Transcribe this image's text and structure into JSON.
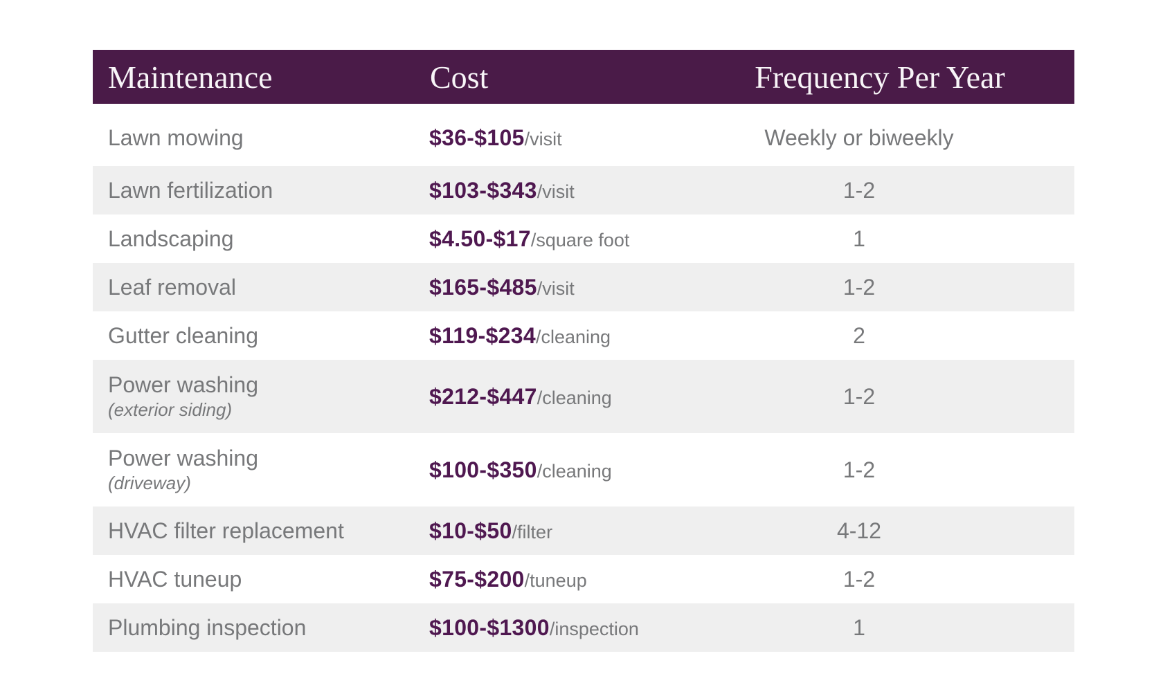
{
  "colors": {
    "header_bg": "#4A1B48",
    "header_text": "#F8F5F8",
    "cost_accent": "#4F1850",
    "body_text": "#77787A",
    "row_alt_bg": "#EFEFEF",
    "page_bg": "#FFFFFF"
  },
  "chart_data": {
    "type": "table",
    "columns": [
      "Maintenance",
      "Cost",
      "Frequency Per Year"
    ],
    "rows": [
      {
        "name": "Lawn mowing",
        "sub": "",
        "cost": "$36-$105",
        "unit": "/visit",
        "frequency": "Weekly or biweekly"
      },
      {
        "name": "Lawn fertilization",
        "sub": "",
        "cost": "$103-$343",
        "unit": "/visit",
        "frequency": "1-2"
      },
      {
        "name": "Landscaping",
        "sub": "",
        "cost": "$4.50-$17",
        "unit": "/square foot",
        "frequency": "1"
      },
      {
        "name": "Leaf removal",
        "sub": "",
        "cost": "$165-$485",
        "unit": "/visit",
        "frequency": "1-2"
      },
      {
        "name": "Gutter cleaning",
        "sub": "",
        "cost": "$119-$234",
        "unit": "/cleaning",
        "frequency": "2"
      },
      {
        "name": "Power washing",
        "sub": "(exterior siding)",
        "cost": "$212-$447",
        "unit": "/cleaning",
        "frequency": "1-2"
      },
      {
        "name": "Power washing",
        "sub": "(driveway)",
        "cost": "$100-$350",
        "unit": "/cleaning",
        "frequency": "1-2"
      },
      {
        "name": "HVAC filter replacement",
        "sub": "",
        "cost": "$10-$50",
        "unit": "/filter",
        "frequency": "4-12"
      },
      {
        "name": "HVAC tuneup",
        "sub": "",
        "cost": "$75-$200",
        "unit": "/tuneup",
        "frequency": "1-2"
      },
      {
        "name": "Plumbing inspection",
        "sub": "",
        "cost": "$100-$1300",
        "unit": "/inspection",
        "frequency": "1"
      }
    ]
  }
}
